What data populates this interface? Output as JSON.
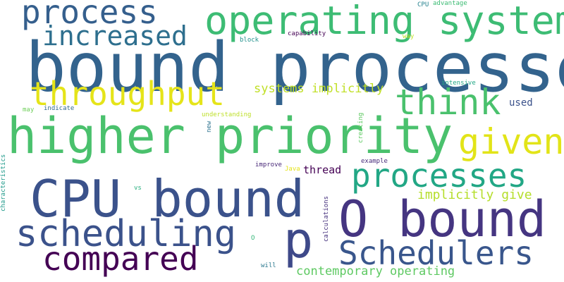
{
  "words": [
    {
      "text": "bound processes",
      "color": "#33638d"
    },
    {
      "text": "operating system",
      "color": "#3dbc74"
    },
    {
      "text": "higher priority",
      "color": "#4ac16d"
    },
    {
      "text": "CPU bound",
      "color": "#3b528b"
    },
    {
      "text": "O bound",
      "color": "#453581"
    },
    {
      "text": "process",
      "color": "#355f8d"
    },
    {
      "text": "increased",
      "color": "#2e6f8e"
    },
    {
      "text": "throughput",
      "color": "#e5e419"
    },
    {
      "text": "think",
      "color": "#4ac16d"
    },
    {
      "text": "given",
      "color": "#e2e418"
    },
    {
      "text": "processes",
      "color": "#22a785"
    },
    {
      "text": "scheduling",
      "color": "#3b528b"
    },
    {
      "text": "compared",
      "color": "#440154"
    },
    {
      "text": "p",
      "color": "#3e4989"
    },
    {
      "text": "Schedulers",
      "color": "#39568c"
    },
    {
      "text": "systems implicitly",
      "color": "#c0df25"
    },
    {
      "text": "implicitly give",
      "color": "#b5de2b"
    },
    {
      "text": "contemporary operating",
      "color": "#5ec962"
    },
    {
      "text": "used",
      "color": "#3b528b"
    },
    {
      "text": "thread",
      "color": "#440154"
    },
    {
      "text": "capability",
      "color": "#440154"
    },
    {
      "text": "block",
      "color": "#21918c"
    },
    {
      "text": "way",
      "color": "#bddf26"
    },
    {
      "text": "CPU",
      "color": "#26828e"
    },
    {
      "text": "advantage",
      "color": "#3dbc74"
    },
    {
      "text": "intensive",
      "color": "#22a785"
    },
    {
      "text": "may",
      "color": "#6ece58"
    },
    {
      "text": "indicate",
      "color": "#31688e"
    },
    {
      "text": "understanding",
      "color": "#bddf26"
    },
    {
      "text": "new",
      "color": "#2c728e"
    },
    {
      "text": "creating",
      "color": "#5ec962"
    },
    {
      "text": "characteristics",
      "color": "#1f9a8a"
    },
    {
      "text": "improve",
      "color": "#482878"
    },
    {
      "text": "Java",
      "color": "#e5e419"
    },
    {
      "text": "example",
      "color": "#472d7b"
    },
    {
      "text": "vs",
      "color": "#29af7f"
    },
    {
      "text": "calculations",
      "color": "#46327e"
    },
    {
      "text": "O",
      "color": "#35b779"
    },
    {
      "text": "will",
      "color": "#2a788e"
    }
  ]
}
